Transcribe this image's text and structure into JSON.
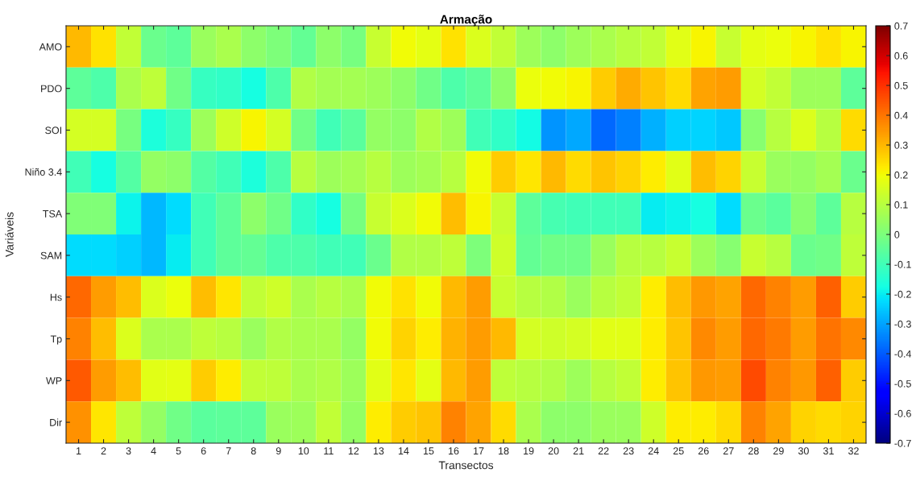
{
  "chart_data": {
    "type": "heatmap",
    "title": "Armação",
    "xlabel": "Transectos",
    "ylabel": "Variáveis",
    "categories": [
      "1",
      "2",
      "3",
      "4",
      "5",
      "6",
      "7",
      "8",
      "9",
      "10",
      "11",
      "12",
      "13",
      "14",
      "15",
      "16",
      "17",
      "18",
      "19",
      "20",
      "21",
      "22",
      "23",
      "24",
      "25",
      "26",
      "27",
      "28",
      "29",
      "30",
      "31",
      "32"
    ],
    "y_categories": [
      "AMO",
      "PDO",
      "SOI",
      "Niño 3.4",
      "TSA",
      "SAM",
      "Hs",
      "Tp",
      "WP",
      "Dir"
    ],
    "cells": [
      [
        0.3,
        0.24,
        0.12,
        -0.03,
        -0.05,
        0.05,
        0.08,
        0.03,
        0.0,
        -0.04,
        0.03,
        -0.01,
        0.13,
        0.2,
        0.18,
        0.24,
        0.16,
        0.12,
        0.06,
        0.03,
        0.06,
        0.08,
        0.1,
        0.12,
        0.17,
        0.21,
        0.13,
        0.18,
        0.19,
        0.21,
        0.24,
        0.21
      ],
      [
        -0.05,
        -0.08,
        0.08,
        0.11,
        -0.02,
        -0.12,
        -0.13,
        -0.17,
        -0.08,
        0.09,
        0.07,
        0.07,
        0.06,
        0.03,
        -0.02,
        -0.08,
        -0.05,
        0.03,
        0.19,
        0.2,
        0.21,
        0.27,
        0.32,
        0.28,
        0.25,
        0.33,
        0.34,
        0.15,
        0.12,
        0.06,
        0.06,
        -0.05
      ],
      [
        0.15,
        0.15,
        -0.01,
        -0.16,
        -0.12,
        0.06,
        0.14,
        0.21,
        0.15,
        -0.02,
        -0.1,
        -0.06,
        0.04,
        0.03,
        0.09,
        0.06,
        -0.1,
        -0.13,
        -0.18,
        -0.32,
        -0.29,
        -0.38,
        -0.35,
        -0.28,
        -0.24,
        -0.23,
        -0.25,
        0.02,
        0.1,
        0.16,
        0.1,
        0.25
      ],
      [
        -0.1,
        -0.17,
        -0.07,
        0.04,
        0.03,
        -0.07,
        -0.1,
        -0.16,
        -0.08,
        0.1,
        0.06,
        0.07,
        0.1,
        0.06,
        0.07,
        0.1,
        0.2,
        0.27,
        0.23,
        0.3,
        0.25,
        0.28,
        0.26,
        0.22,
        0.17,
        0.29,
        0.26,
        0.13,
        0.05,
        0.04,
        0.07,
        -0.03
      ],
      [
        0.01,
        0.01,
        -0.19,
        -0.27,
        -0.22,
        -0.1,
        -0.05,
        0.03,
        -0.02,
        -0.13,
        -0.17,
        -0.01,
        0.13,
        0.16,
        0.2,
        0.29,
        0.21,
        0.13,
        -0.05,
        -0.09,
        -0.1,
        -0.1,
        -0.1,
        -0.2,
        -0.19,
        -0.17,
        -0.22,
        -0.03,
        -0.06,
        0.02,
        -0.05,
        0.1
      ],
      [
        -0.22,
        -0.22,
        -0.24,
        -0.27,
        -0.2,
        -0.1,
        -0.05,
        -0.04,
        -0.08,
        -0.08,
        -0.1,
        -0.1,
        -0.03,
        0.09,
        0.09,
        0.11,
        0.0,
        0.14,
        -0.04,
        -0.02,
        -0.02,
        0.05,
        0.1,
        0.1,
        0.13,
        0.06,
        0.02,
        0.13,
        0.1,
        -0.03,
        -0.02,
        0.11
      ],
      [
        0.42,
        0.34,
        0.29,
        0.16,
        0.19,
        0.29,
        0.23,
        0.12,
        0.14,
        0.08,
        0.1,
        0.08,
        0.2,
        0.24,
        0.2,
        0.3,
        0.34,
        0.13,
        0.1,
        0.09,
        0.05,
        0.1,
        0.12,
        0.22,
        0.29,
        0.35,
        0.33,
        0.42,
        0.38,
        0.34,
        0.43,
        0.27
      ],
      [
        0.38,
        0.29,
        0.16,
        0.08,
        0.08,
        0.11,
        0.1,
        0.05,
        0.09,
        0.08,
        0.08,
        0.04,
        0.2,
        0.26,
        0.22,
        0.31,
        0.34,
        0.3,
        0.15,
        0.14,
        0.15,
        0.17,
        0.17,
        0.22,
        0.28,
        0.37,
        0.34,
        0.42,
        0.39,
        0.34,
        0.4,
        0.37
      ],
      [
        0.44,
        0.34,
        0.29,
        0.17,
        0.18,
        0.27,
        0.22,
        0.12,
        0.11,
        0.08,
        0.09,
        0.06,
        0.17,
        0.23,
        0.18,
        0.3,
        0.34,
        0.11,
        0.1,
        0.09,
        0.06,
        0.1,
        0.12,
        0.22,
        0.28,
        0.35,
        0.34,
        0.46,
        0.38,
        0.35,
        0.43,
        0.27
      ],
      [
        0.36,
        0.23,
        0.11,
        0.04,
        -0.02,
        -0.06,
        -0.05,
        -0.05,
        0.05,
        0.06,
        0.12,
        0.04,
        0.22,
        0.27,
        0.28,
        0.38,
        0.33,
        0.25,
        0.08,
        0.03,
        0.03,
        0.05,
        0.05,
        0.14,
        0.22,
        0.22,
        0.25,
        0.38,
        0.33,
        0.26,
        0.25,
        0.26
      ]
    ],
    "clim": [
      -0.7,
      0.7
    ],
    "cticks": [
      -0.7,
      -0.6,
      -0.5,
      -0.4,
      -0.3,
      -0.2,
      -0.1,
      0,
      0.1,
      0.2,
      0.3,
      0.4,
      0.5,
      0.6,
      0.7
    ]
  }
}
